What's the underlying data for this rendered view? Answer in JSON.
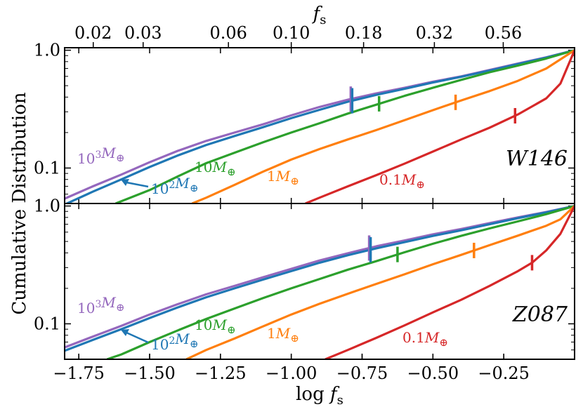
{
  "chart_data": {
    "type": "line",
    "xlabel": "log",
    "xlabel_sym": "f",
    "xlabel_sub": "s",
    "top_axis_label_sym": "f",
    "top_axis_label_sub": "s",
    "ylabel": "Cumulative Distribution",
    "xlim": [
      -1.8,
      0.0
    ],
    "xticks": [
      -1.75,
      -1.5,
      -1.25,
      -1.0,
      -0.75,
      -0.5,
      -0.25
    ],
    "xtick_labels": [
      "−1.75",
      "−1.50",
      "−1.25",
      "−1.00",
      "−0.75",
      "−0.50",
      "−0.25"
    ],
    "top_ticks": [
      0.02,
      0.03,
      0.06,
      0.1,
      0.18,
      0.32,
      0.56
    ],
    "top_tick_labels": [
      "0.02",
      "0.03",
      "0.06",
      "0.10",
      "0.18",
      "0.32",
      "0.56"
    ],
    "ylim": [
      0.05,
      1.05
    ],
    "yscale": "log",
    "yticks": [
      0.1,
      1.0
    ],
    "ytick_labels": [
      "0.1",
      "1.0"
    ],
    "colors": {
      "1000": "#9467bd",
      "100": "#1f77b4",
      "10": "#2ca02c",
      "1": "#ff7f0e",
      "0.1": "#d62728"
    },
    "panels": [
      {
        "label": "W146",
        "series": [
          {
            "name": "10^3 M⊕",
            "mass": "1000",
            "x": [
              -1.8,
              -1.7,
              -1.6,
              -1.5,
              -1.4,
              -1.3,
              -1.2,
              -1.1,
              -1.0,
              -0.9,
              -0.8,
              -0.7,
              -0.6,
              -0.5,
              -0.4,
              -0.3,
              -0.2,
              -0.1,
              0.0
            ],
            "y": [
              0.055,
              0.07,
              0.088,
              0.112,
              0.14,
              0.17,
              0.2,
              0.235,
              0.28,
              0.33,
              0.38,
              0.43,
              0.48,
              0.54,
              0.6,
              0.68,
              0.77,
              0.87,
              1.0
            ],
            "marker_x": -0.79
          },
          {
            "name": "10^2 M⊕",
            "mass": "100",
            "x": [
              -1.8,
              -1.7,
              -1.6,
              -1.5,
              -1.4,
              -1.3,
              -1.2,
              -1.1,
              -1.0,
              -0.9,
              -0.8,
              -0.7,
              -0.6,
              -0.5,
              -0.4,
              -0.3,
              -0.2,
              -0.1,
              0.0
            ],
            "y": [
              0.049,
              0.063,
              0.08,
              0.102,
              0.128,
              0.157,
              0.187,
              0.222,
              0.265,
              0.312,
              0.365,
              0.418,
              0.47,
              0.532,
              0.595,
              0.672,
              0.763,
              0.865,
              1.0
            ],
            "marker_x": -0.785
          },
          {
            "name": "10M⊕",
            "mass": "10",
            "x": [
              -1.62,
              -1.5,
              -1.4,
              -1.3,
              -1.2,
              -1.1,
              -1.0,
              -0.9,
              -0.8,
              -0.7,
              -0.6,
              -0.5,
              -0.4,
              -0.3,
              -0.2,
              -0.1,
              0.0
            ],
            "y": [
              0.05,
              0.065,
              0.085,
              0.11,
              0.135,
              0.165,
              0.2,
              0.24,
              0.29,
              0.345,
              0.41,
              0.48,
              0.56,
              0.65,
              0.74,
              0.85,
              1.0
            ],
            "marker_x": -0.69
          },
          {
            "name": "1M⊕",
            "mass": "1",
            "x": [
              -1.35,
              -1.3,
              -1.2,
              -1.1,
              -1.0,
              -0.9,
              -0.8,
              -0.7,
              -0.6,
              -0.5,
              -0.4,
              -0.3,
              -0.2,
              -0.1,
              0.0
            ],
            "y": [
              0.05,
              0.056,
              0.072,
              0.093,
              0.118,
              0.145,
              0.175,
              0.21,
              0.255,
              0.31,
              0.375,
              0.45,
              0.55,
              0.7,
              1.0
            ],
            "marker_x": -0.42
          },
          {
            "name": "0.1M⊕",
            "mass": "0.1",
            "x": [
              -0.95,
              -0.9,
              -0.8,
              -0.7,
              -0.6,
              -0.5,
              -0.4,
              -0.3,
              -0.2,
              -0.1,
              -0.05,
              0.0
            ],
            "y": [
              0.05,
              0.056,
              0.07,
              0.087,
              0.109,
              0.138,
              0.175,
              0.22,
              0.285,
              0.39,
              0.52,
              1.0
            ],
            "marker_x": -0.21
          }
        ],
        "annotations": [
          {
            "text": "10^3 M⊕",
            "mass": "1000"
          },
          {
            "text": "10^2 M⊕",
            "mass": "100"
          },
          {
            "text": "10M⊕",
            "mass": "10"
          },
          {
            "text": "1M⊕",
            "mass": "1"
          },
          {
            "text": "0.1M⊕",
            "mass": "0.1"
          }
        ]
      },
      {
        "label": "Z087",
        "series": [
          {
            "name": "10^3 M⊕",
            "mass": "1000",
            "x": [
              -1.8,
              -1.7,
              -1.6,
              -1.5,
              -1.4,
              -1.3,
              -1.2,
              -1.1,
              -1.0,
              -0.9,
              -0.8,
              -0.7,
              -0.6,
              -0.5,
              -0.4,
              -0.3,
              -0.2,
              -0.1,
              0.0
            ],
            "y": [
              0.063,
              0.078,
              0.096,
              0.12,
              0.147,
              0.178,
              0.21,
              0.248,
              0.293,
              0.345,
              0.397,
              0.455,
              0.51,
              0.575,
              0.638,
              0.715,
              0.8,
              0.89,
              1.0
            ],
            "marker_x": -0.725
          },
          {
            "name": "10^2 M⊕",
            "mass": "100",
            "x": [
              -1.8,
              -1.7,
              -1.6,
              -1.5,
              -1.4,
              -1.3,
              -1.2,
              -1.1,
              -1.0,
              -0.9,
              -0.8,
              -0.7,
              -0.6,
              -0.5,
              -0.4,
              -0.3,
              -0.2,
              -0.1,
              0.0
            ],
            "y": [
              0.059,
              0.073,
              0.09,
              0.112,
              0.138,
              0.168,
              0.2,
              0.237,
              0.28,
              0.33,
              0.382,
              0.437,
              0.493,
              0.557,
              0.622,
              0.7,
              0.788,
              0.882,
              1.0
            ],
            "marker_x": -0.72
          },
          {
            "name": "10M⊕",
            "mass": "10",
            "x": [
              -1.65,
              -1.6,
              -1.5,
              -1.4,
              -1.3,
              -1.2,
              -1.1,
              -1.0,
              -0.9,
              -0.8,
              -0.7,
              -0.6,
              -0.5,
              -0.4,
              -0.3,
              -0.2,
              -0.1,
              0.0
            ],
            "y": [
              0.05,
              0.055,
              0.07,
              0.088,
              0.11,
              0.135,
              0.165,
              0.2,
              0.24,
              0.288,
              0.34,
              0.405,
              0.478,
              0.558,
              0.645,
              0.74,
              0.852,
              1.0
            ],
            "marker_x": -0.625
          },
          {
            "name": "1M⊕",
            "mass": "1",
            "x": [
              -1.37,
              -1.3,
              -1.2,
              -1.1,
              -1.0,
              -0.9,
              -0.8,
              -0.7,
              -0.6,
              -0.5,
              -0.4,
              -0.3,
              -0.2,
              -0.1,
              -0.05,
              0.0
            ],
            "y": [
              0.05,
              0.06,
              0.075,
              0.095,
              0.12,
              0.148,
              0.18,
              0.218,
              0.263,
              0.32,
              0.385,
              0.465,
              0.56,
              0.68,
              0.77,
              1.0
            ],
            "marker_x": -0.355
          },
          {
            "name": "0.1M⊕",
            "mass": "0.1",
            "x": [
              -0.88,
              -0.8,
              -0.7,
              -0.6,
              -0.5,
              -0.4,
              -0.3,
              -0.2,
              -0.15,
              -0.1,
              -0.05,
              0.0
            ],
            "y": [
              0.05,
              0.06,
              0.076,
              0.097,
              0.125,
              0.16,
              0.21,
              0.28,
              0.33,
              0.42,
              0.58,
              1.0
            ],
            "marker_x": -0.15
          }
        ],
        "annotations": [
          {
            "text": "10^3 M⊕",
            "mass": "1000"
          },
          {
            "text": "10^2 M⊕",
            "mass": "100"
          },
          {
            "text": "10M⊕",
            "mass": "10"
          },
          {
            "text": "1M⊕",
            "mass": "1"
          },
          {
            "text": "0.1M⊕",
            "mass": "0.1"
          }
        ]
      }
    ]
  }
}
